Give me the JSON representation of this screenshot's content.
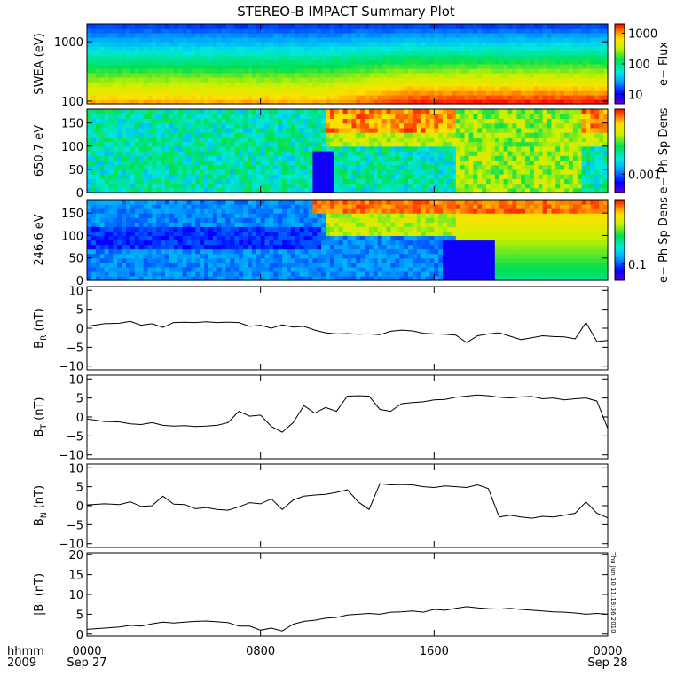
{
  "title": "STEREO-B IMPACT Summary Plot",
  "timestamp": "Thu Jun 10 11:18:36 2010",
  "time_axis": {
    "row1_label": "hhmm",
    "row2_label": "2009",
    "ticks": [
      {
        "hhmm": "0000",
        "date": "Sep 27",
        "hour": 0
      },
      {
        "hhmm": "0800",
        "date": "",
        "hour": 8
      },
      {
        "hhmm": "1600",
        "date": "",
        "hour": 16
      },
      {
        "hhmm": "0000",
        "date": "Sep 28",
        "hour": 24
      }
    ]
  },
  "chart_data": [
    {
      "type": "heatmap",
      "id": "swea",
      "ylabel": "SWEA (eV)",
      "yscale": "log",
      "ylim": [
        90,
        2000
      ],
      "yticks": [
        {
          "label": "1000",
          "value": 1000
        },
        {
          "label": "100",
          "value": 100
        }
      ],
      "colorbar_label": "e− Flux",
      "colorbar_ticks": [
        {
          "label": "1000",
          "value": 1000
        },
        {
          "label": "100",
          "value": 100
        },
        {
          "label": "10",
          "value": 10
        }
      ],
      "colorbar_range": [
        5,
        2000
      ]
    },
    {
      "type": "heatmap",
      "id": "pad650",
      "ylabel": "650.7 eV",
      "ylim": [
        0,
        180
      ],
      "yticks": [
        {
          "label": "150",
          "value": 150
        },
        {
          "label": "100",
          "value": 100
        },
        {
          "label": "50",
          "value": 50
        },
        {
          "label": "0",
          "value": 0
        }
      ],
      "colorbar_label": "e− Ph Sp Dens",
      "colorbar_ticks": [
        {
          "label": "0.001",
          "value": 0.001
        }
      ]
    },
    {
      "type": "heatmap",
      "id": "pad246",
      "ylabel": "246.6 eV",
      "ylim": [
        0,
        180
      ],
      "yticks": [
        {
          "label": "150",
          "value": 150
        },
        {
          "label": "100",
          "value": 100
        },
        {
          "label": "50",
          "value": 50
        },
        {
          "label": "0",
          "value": 0
        }
      ],
      "colorbar_label": "e− Ph Sp Dens",
      "colorbar_ticks": [
        {
          "label": "0.1",
          "value": 0.1
        }
      ]
    },
    {
      "type": "line",
      "id": "br",
      "ylabel": "B_R (nT)",
      "ylabel_main": "B",
      "ylabel_sub": "R",
      "ylabel_unit": " (nT)",
      "ylim": [
        -11,
        11
      ],
      "yticks": [
        {
          "label": "10",
          "value": 10
        },
        {
          "label": "5",
          "value": 5
        },
        {
          "label": "0",
          "value": 0
        },
        {
          "label": "−5",
          "value": -5
        },
        {
          "label": "−10",
          "value": -10
        }
      ],
      "x_hours": [
        0,
        0.8,
        1.5,
        2,
        2.5,
        3,
        3.5,
        4,
        4.5,
        5,
        5.5,
        6,
        6.5,
        7,
        7.5,
        8,
        8.5,
        9,
        9.5,
        10,
        10.5,
        11,
        11.5,
        12,
        12.5,
        13,
        13.5,
        14,
        14.5,
        15,
        15.5,
        16,
        16.5,
        17,
        17.5,
        18,
        18.5,
        19,
        19.5,
        20,
        20.5,
        21,
        21.5,
        22,
        22.5,
        23,
        23.5,
        24
      ],
      "values": [
        0.5,
        1.2,
        1.3,
        1.8,
        0.8,
        1.2,
        0.2,
        1.5,
        1.6,
        1.5,
        1.7,
        1.5,
        1.6,
        1.5,
        0.5,
        0.8,
        0.0,
        0.9,
        0.3,
        0.5,
        -0.5,
        -1.2,
        -1.5,
        -1.4,
        -1.6,
        -1.5,
        -1.7,
        -0.8,
        -0.5,
        -0.7,
        -1.3,
        -1.5,
        -1.6,
        -1.8,
        -3.8,
        -2.0,
        -1.5,
        -1.2,
        -2.1,
        -3.0,
        -2.5,
        -2.0,
        -2.2,
        -2.3,
        -2.8,
        1.5,
        -3.5,
        -3.2
      ]
    },
    {
      "type": "line",
      "id": "bt",
      "ylabel": "B_T (nT)",
      "ylabel_main": "B",
      "ylabel_sub": "T",
      "ylabel_unit": " (nT)",
      "ylim": [
        -11,
        11
      ],
      "yticks": [
        {
          "label": "10",
          "value": 10
        },
        {
          "label": "5",
          "value": 5
        },
        {
          "label": "0",
          "value": 0
        },
        {
          "label": "−5",
          "value": -5
        },
        {
          "label": "−10",
          "value": -10
        }
      ],
      "x_hours": [
        0,
        0.8,
        1.5,
        2,
        2.5,
        3,
        3.5,
        4,
        4.5,
        5,
        5.5,
        6,
        6.5,
        7,
        7.5,
        8,
        8.5,
        9,
        9.5,
        10,
        10.5,
        11,
        11.5,
        12,
        12.5,
        13,
        13.5,
        14,
        14.5,
        15,
        15.5,
        16,
        16.5,
        17,
        17.5,
        18,
        18.5,
        19,
        19.5,
        20,
        20.5,
        21,
        21.5,
        22,
        22.5,
        23,
        23.5,
        24
      ],
      "values": [
        -0.5,
        -1.2,
        -1.3,
        -1.8,
        -2.0,
        -1.5,
        -2.2,
        -2.4,
        -2.3,
        -2.5,
        -2.4,
        -2.2,
        -1.5,
        1.5,
        0.2,
        0.5,
        -2.5,
        -4.0,
        -1.5,
        3.0,
        1.0,
        2.5,
        1.5,
        5.5,
        5.6,
        5.5,
        2.0,
        1.5,
        3.5,
        3.8,
        4.0,
        4.5,
        4.6,
        5.2,
        5.5,
        5.8,
        5.6,
        5.2,
        5.0,
        5.3,
        5.4,
        4.8,
        5.0,
        4.5,
        4.8,
        5.0,
        4.2,
        -3.0
      ]
    },
    {
      "type": "line",
      "id": "bn",
      "ylabel": "B_N (nT)",
      "ylabel_main": "B",
      "ylabel_sub": "N",
      "ylabel_unit": " (nT)",
      "ylim": [
        -11,
        11
      ],
      "yticks": [
        {
          "label": "10",
          "value": 10
        },
        {
          "label": "5",
          "value": 5
        },
        {
          "label": "0",
          "value": 0
        },
        {
          "label": "−5",
          "value": -5
        },
        {
          "label": "−10",
          "value": -10
        }
      ],
      "x_hours": [
        0,
        0.8,
        1.5,
        2,
        2.5,
        3,
        3.5,
        4,
        4.5,
        5,
        5.5,
        6,
        6.5,
        7,
        7.5,
        8,
        8.5,
        9,
        9.5,
        10,
        10.5,
        11,
        11.5,
        12,
        12.5,
        13,
        13.5,
        14,
        14.5,
        15,
        15.5,
        16,
        16.5,
        17,
        17.5,
        18,
        18.5,
        19,
        19.5,
        20,
        20.5,
        21,
        21.5,
        22,
        22.5,
        23,
        23.5,
        24
      ],
      "values": [
        0.2,
        0.5,
        0.3,
        1.0,
        -0.2,
        0.0,
        2.5,
        0.4,
        0.3,
        -0.8,
        -0.5,
        -1.0,
        -1.2,
        -0.3,
        0.8,
        0.5,
        1.8,
        -1.0,
        1.5,
        2.5,
        2.8,
        3.0,
        3.5,
        4.2,
        1.0,
        -1.0,
        5.8,
        5.5,
        5.6,
        5.5,
        5.0,
        4.8,
        5.2,
        5.0,
        4.8,
        5.5,
        4.5,
        -3.0,
        -2.5,
        -3.0,
        -3.3,
        -2.8,
        -3.0,
        -2.5,
        -2.0,
        1.0,
        -2.0,
        -3.2
      ]
    },
    {
      "type": "line",
      "id": "bmag",
      "ylabel": "|B| (nT)",
      "ylim": [
        -0.5,
        20.5
      ],
      "yticks": [
        {
          "label": "20",
          "value": 20
        },
        {
          "label": "15",
          "value": 15
        },
        {
          "label": "10",
          "value": 10
        },
        {
          "label": "5",
          "value": 5
        },
        {
          "label": "0",
          "value": 0
        }
      ],
      "x_hours": [
        0,
        0.8,
        1.5,
        2,
        2.5,
        3,
        3.5,
        4,
        4.5,
        5,
        5.5,
        6,
        6.5,
        7,
        7.5,
        8,
        8.5,
        9,
        9.5,
        10,
        10.5,
        11,
        11.5,
        12,
        12.5,
        13,
        13.5,
        14,
        14.5,
        15,
        15.5,
        16,
        16.5,
        17,
        17.5,
        18,
        18.5,
        19,
        19.5,
        20,
        20.5,
        21,
        21.5,
        22,
        22.5,
        23,
        23.5,
        24
      ],
      "values": [
        1.2,
        1.5,
        1.8,
        2.2,
        2.0,
        2.6,
        3.0,
        2.8,
        3.0,
        3.2,
        3.3,
        3.1,
        2.9,
        2.0,
        2.0,
        1.0,
        1.5,
        0.8,
        2.5,
        3.2,
        3.5,
        4.0,
        4.2,
        4.8,
        5.0,
        5.2,
        5.0,
        5.5,
        5.6,
        5.8,
        5.5,
        6.2,
        6.0,
        6.5,
        6.9,
        6.6,
        6.4,
        6.3,
        6.5,
        6.2,
        6.0,
        5.8,
        5.6,
        5.5,
        5.3,
        5.0,
        5.2,
        5.0
      ]
    }
  ]
}
